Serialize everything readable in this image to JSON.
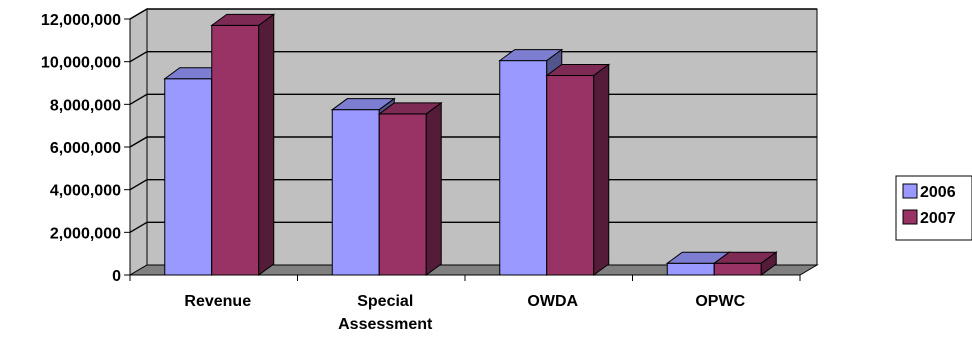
{
  "chart_data": {
    "type": "bar",
    "style": "3d-clustered-column",
    "categories": [
      [
        "Revenue"
      ],
      [
        "Special",
        "Assessment"
      ],
      [
        "OWDA"
      ],
      [
        "OPWC"
      ]
    ],
    "series": [
      {
        "name": "2006",
        "color": "#9999FF",
        "values": [
          9200000,
          7750000,
          10050000,
          550000
        ]
      },
      {
        "name": "2007",
        "color": "#993366",
        "values": [
          11700000,
          7550000,
          9350000,
          550000
        ]
      }
    ],
    "y_ticks": [
      "0",
      "2,000,000",
      "4,000,000",
      "6,000,000",
      "8,000,000",
      "10,000,000",
      "12,000,000"
    ],
    "ylim": [
      0,
      12000000
    ],
    "grid": true,
    "legend_position": "right",
    "wall_color": "#C0C0C0",
    "floor_color": "#808080"
  }
}
